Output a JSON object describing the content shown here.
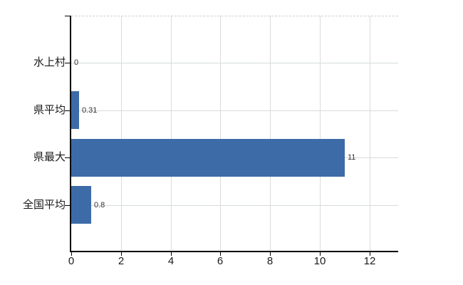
{
  "chart_data": {
    "type": "bar",
    "orientation": "horizontal",
    "title": "",
    "categories": [
      "水上村",
      "県平均",
      "県最大",
      "全国平均"
    ],
    "values": [
      0,
      0.31,
      11,
      0.8
    ],
    "value_labels": [
      "0",
      "0.31",
      "11",
      "0.8"
    ],
    "x_ticks": [
      0,
      2,
      4,
      6,
      8,
      10,
      12
    ],
    "x_tick_labels": [
      "0",
      "2",
      "4",
      "6",
      "8",
      "10",
      "12"
    ],
    "xlim": [
      0,
      13.15
    ],
    "grid": true,
    "legend": false,
    "colors": {
      "bar": "#3d6ba8",
      "axis": "#000000",
      "gridline_horizontal": "#d5ddd5",
      "gridline_vertical": "#dcdcdc",
      "plot_top_border": "#cfcfcf",
      "text": "#1a1a1a",
      "value_label_text": "#333333",
      "background": "#ffffff"
    }
  }
}
